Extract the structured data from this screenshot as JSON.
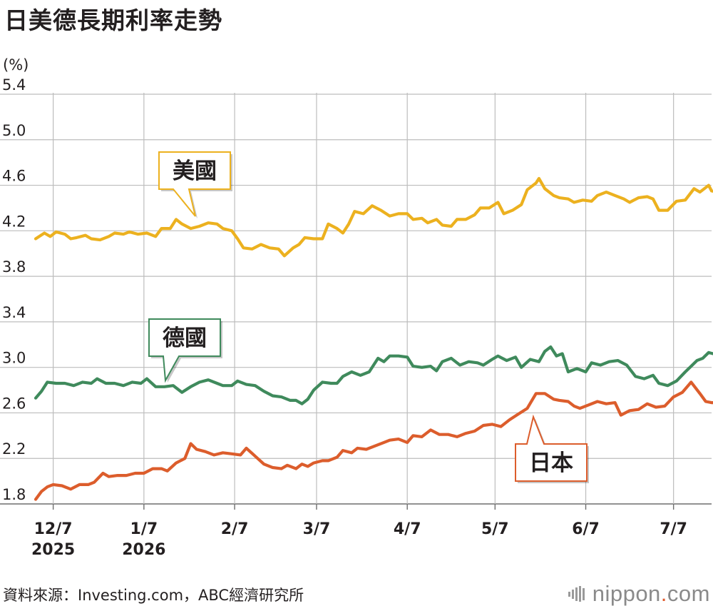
{
  "title": "日美德長期利率走勢",
  "source": "資料來源：Investing.com，ABC經濟研究所",
  "brand": {
    "prefix": "nippon",
    "dot": ".",
    "suffix": "com"
  },
  "colors": {
    "us": "#ecb11f",
    "de": "#3f8a5c",
    "jp": "#dc5d2c",
    "grid": "#bdbdbd",
    "text": "#231f20"
  },
  "chart_data": {
    "type": "line",
    "title": "日美德長期利率走勢",
    "ylabel": "(%)",
    "xlabel": "",
    "ylim": [
      1.8,
      5.4
    ],
    "yticks": [
      "5.4",
      "5.0",
      "4.6",
      "4.2",
      "3.8",
      "3.4",
      "3.0",
      "2.6",
      "2.2",
      "1.8"
    ],
    "x_range": [
      "2025-12-01",
      "2026-07-20"
    ],
    "xticks": [
      {
        "date": "2025-12-07",
        "label": "12/7",
        "sub": "2025"
      },
      {
        "date": "2026-01-07",
        "label": "1/7",
        "sub": "2026"
      },
      {
        "date": "2026-02-07",
        "label": "2/7",
        "sub": ""
      },
      {
        "date": "2026-03-07",
        "label": "3/7",
        "sub": ""
      },
      {
        "date": "2026-04-07",
        "label": "4/7",
        "sub": ""
      },
      {
        "date": "2026-05-07",
        "label": "5/7",
        "sub": ""
      },
      {
        "date": "2026-06-07",
        "label": "6/7",
        "sub": ""
      },
      {
        "date": "2026-07-07",
        "label": "7/7",
        "sub": ""
      }
    ],
    "grid": true,
    "series": [
      {
        "name": "美國",
        "color": "#ecb11f",
        "points": [
          [
            "2025-12-01",
            4.13
          ],
          [
            "2025-12-04",
            4.18
          ],
          [
            "2025-12-06",
            4.15
          ],
          [
            "2025-12-08",
            4.19
          ],
          [
            "2025-12-11",
            4.17
          ],
          [
            "2025-12-13",
            4.13
          ],
          [
            "2025-12-15",
            4.14
          ],
          [
            "2025-12-18",
            4.16
          ],
          [
            "2025-12-20",
            4.13
          ],
          [
            "2025-12-23",
            4.12
          ],
          [
            "2025-12-26",
            4.15
          ],
          [
            "2025-12-28",
            4.18
          ],
          [
            "2025-12-31",
            4.17
          ],
          [
            "2026-01-02",
            4.19
          ],
          [
            "2026-01-05",
            4.17
          ],
          [
            "2026-01-08",
            4.18
          ],
          [
            "2026-01-11",
            4.15
          ],
          [
            "2026-01-13",
            4.22
          ],
          [
            "2026-01-16",
            4.22
          ],
          [
            "2026-01-18",
            4.3
          ],
          [
            "2026-01-20",
            4.26
          ],
          [
            "2026-01-23",
            4.22
          ],
          [
            "2026-01-26",
            4.24
          ],
          [
            "2026-01-29",
            4.27
          ],
          [
            "2026-02-01",
            4.26
          ],
          [
            "2026-02-03",
            4.22
          ],
          [
            "2026-02-06",
            4.2
          ],
          [
            "2026-02-08",
            4.13
          ],
          [
            "2026-02-10",
            4.05
          ],
          [
            "2026-02-13",
            4.04
          ],
          [
            "2026-02-16",
            4.08
          ],
          [
            "2026-02-19",
            4.05
          ],
          [
            "2026-02-22",
            4.04
          ],
          [
            "2026-02-24",
            3.98
          ],
          [
            "2026-02-27",
            4.05
          ],
          [
            "2026-03-01",
            4.08
          ],
          [
            "2026-03-03",
            4.14
          ],
          [
            "2026-03-06",
            4.13
          ],
          [
            "2026-03-09",
            4.13
          ],
          [
            "2026-03-11",
            4.26
          ],
          [
            "2026-03-14",
            4.22
          ],
          [
            "2026-03-16",
            4.18
          ],
          [
            "2026-03-18",
            4.26
          ],
          [
            "2026-03-20",
            4.37
          ],
          [
            "2026-03-23",
            4.35
          ],
          [
            "2026-03-26",
            4.42
          ],
          [
            "2026-03-29",
            4.38
          ],
          [
            "2026-04-01",
            4.33
          ],
          [
            "2026-04-04",
            4.35
          ],
          [
            "2026-04-07",
            4.35
          ],
          [
            "2026-04-09",
            4.3
          ],
          [
            "2026-04-12",
            4.31
          ],
          [
            "2026-04-14",
            4.27
          ],
          [
            "2026-04-17",
            4.3
          ],
          [
            "2026-04-19",
            4.25
          ],
          [
            "2026-04-22",
            4.24
          ],
          [
            "2026-04-24",
            4.3
          ],
          [
            "2026-04-27",
            4.3
          ],
          [
            "2026-04-30",
            4.34
          ],
          [
            "2026-05-02",
            4.4
          ],
          [
            "2026-05-05",
            4.4
          ],
          [
            "2026-05-08",
            4.45
          ],
          [
            "2026-05-10",
            4.35
          ],
          [
            "2026-05-13",
            4.38
          ],
          [
            "2026-05-16",
            4.43
          ],
          [
            "2026-05-18",
            4.56
          ],
          [
            "2026-05-21",
            4.62
          ],
          [
            "2026-05-22",
            4.66
          ],
          [
            "2026-05-24",
            4.57
          ],
          [
            "2026-05-27",
            4.51
          ],
          [
            "2026-05-29",
            4.49
          ],
          [
            "2026-06-01",
            4.48
          ],
          [
            "2026-06-03",
            4.45
          ],
          [
            "2026-06-06",
            4.47
          ],
          [
            "2026-06-09",
            4.46
          ],
          [
            "2026-06-11",
            4.51
          ],
          [
            "2026-06-14",
            4.54
          ],
          [
            "2026-06-17",
            4.51
          ],
          [
            "2026-06-20",
            4.48
          ],
          [
            "2026-06-22",
            4.45
          ],
          [
            "2026-06-25",
            4.49
          ],
          [
            "2026-06-28",
            4.5
          ],
          [
            "2026-06-30",
            4.48
          ],
          [
            "2026-07-02",
            4.38
          ],
          [
            "2026-07-05",
            4.38
          ],
          [
            "2026-07-08",
            4.46
          ],
          [
            "2026-07-11",
            4.47
          ],
          [
            "2026-07-14",
            4.57
          ],
          [
            "2026-07-16",
            4.54
          ],
          [
            "2026-07-19",
            4.6
          ],
          [
            "2026-07-20",
            4.55
          ],
          [
            "2026-07-22",
            4.54
          ]
        ]
      },
      {
        "name": "德國",
        "color": "#3f8a5c",
        "points": [
          [
            "2025-12-01",
            2.73
          ],
          [
            "2025-12-03",
            2.79
          ],
          [
            "2025-12-05",
            2.87
          ],
          [
            "2025-12-08",
            2.86
          ],
          [
            "2025-12-11",
            2.86
          ],
          [
            "2025-12-14",
            2.84
          ],
          [
            "2025-12-17",
            2.87
          ],
          [
            "2025-12-20",
            2.86
          ],
          [
            "2025-12-22",
            2.9
          ],
          [
            "2025-12-25",
            2.86
          ],
          [
            "2025-12-28",
            2.86
          ],
          [
            "2025-12-31",
            2.84
          ],
          [
            "2026-01-03",
            2.87
          ],
          [
            "2026-01-06",
            2.86
          ],
          [
            "2026-01-08",
            2.9
          ],
          [
            "2026-01-11",
            2.83
          ],
          [
            "2026-01-14",
            2.83
          ],
          [
            "2026-01-17",
            2.84
          ],
          [
            "2026-01-20",
            2.78
          ],
          [
            "2026-01-23",
            2.83
          ],
          [
            "2026-01-26",
            2.87
          ],
          [
            "2026-01-29",
            2.89
          ],
          [
            "2026-02-01",
            2.86
          ],
          [
            "2026-02-03",
            2.84
          ],
          [
            "2026-02-06",
            2.84
          ],
          [
            "2026-02-08",
            2.88
          ],
          [
            "2026-02-11",
            2.85
          ],
          [
            "2026-02-14",
            2.84
          ],
          [
            "2026-02-17",
            2.79
          ],
          [
            "2026-02-20",
            2.75
          ],
          [
            "2026-02-23",
            2.74
          ],
          [
            "2026-02-26",
            2.71
          ],
          [
            "2026-02-28",
            2.71
          ],
          [
            "2026-03-02",
            2.68
          ],
          [
            "2026-03-04",
            2.72
          ],
          [
            "2026-03-06",
            2.8
          ],
          [
            "2026-03-09",
            2.87
          ],
          [
            "2026-03-12",
            2.86
          ],
          [
            "2026-03-14",
            2.86
          ],
          [
            "2026-03-16",
            2.92
          ],
          [
            "2026-03-19",
            2.96
          ],
          [
            "2026-03-22",
            2.93
          ],
          [
            "2026-03-25",
            2.96
          ],
          [
            "2026-03-28",
            3.08
          ],
          [
            "2026-03-30",
            3.05
          ],
          [
            "2026-04-01",
            3.1
          ],
          [
            "2026-04-04",
            3.1
          ],
          [
            "2026-04-07",
            3.09
          ],
          [
            "2026-04-09",
            3.01
          ],
          [
            "2026-04-12",
            3.0
          ],
          [
            "2026-04-15",
            3.01
          ],
          [
            "2026-04-17",
            2.97
          ],
          [
            "2026-04-19",
            3.05
          ],
          [
            "2026-04-22",
            3.08
          ],
          [
            "2026-04-25",
            3.02
          ],
          [
            "2026-04-28",
            3.05
          ],
          [
            "2026-05-01",
            3.04
          ],
          [
            "2026-05-03",
            3.02
          ],
          [
            "2026-05-06",
            3.07
          ],
          [
            "2026-05-08",
            3.1
          ],
          [
            "2026-05-11",
            3.06
          ],
          [
            "2026-05-14",
            3.09
          ],
          [
            "2026-05-16",
            3.0
          ],
          [
            "2026-05-19",
            3.07
          ],
          [
            "2026-05-22",
            3.05
          ],
          [
            "2026-05-24",
            3.14
          ],
          [
            "2026-05-26",
            3.18
          ],
          [
            "2026-05-28",
            3.1
          ],
          [
            "2026-05-30",
            3.12
          ],
          [
            "2026-06-01",
            2.96
          ],
          [
            "2026-06-04",
            2.99
          ],
          [
            "2026-06-07",
            2.96
          ],
          [
            "2026-06-09",
            3.04
          ],
          [
            "2026-06-12",
            3.02
          ],
          [
            "2026-06-15",
            3.05
          ],
          [
            "2026-06-18",
            3.06
          ],
          [
            "2026-06-21",
            3.02
          ],
          [
            "2026-06-24",
            2.92
          ],
          [
            "2026-06-27",
            2.9
          ],
          [
            "2026-06-30",
            2.93
          ],
          [
            "2026-07-02",
            2.86
          ],
          [
            "2026-07-05",
            2.84
          ],
          [
            "2026-07-08",
            2.88
          ],
          [
            "2026-07-11",
            2.96
          ],
          [
            "2026-07-13",
            3.01
          ],
          [
            "2026-07-15",
            3.06
          ],
          [
            "2026-07-17",
            3.08
          ],
          [
            "2026-07-19",
            3.13
          ],
          [
            "2026-07-22",
            3.11
          ]
        ]
      },
      {
        "name": "日本",
        "color": "#dc5d2c",
        "points": [
          [
            "2025-12-01",
            1.84
          ],
          [
            "2025-12-03",
            1.91
          ],
          [
            "2025-12-05",
            1.95
          ],
          [
            "2025-12-07",
            1.97
          ],
          [
            "2025-12-10",
            1.96
          ],
          [
            "2025-12-13",
            1.93
          ],
          [
            "2025-12-16",
            1.97
          ],
          [
            "2025-12-19",
            1.97
          ],
          [
            "2025-12-21",
            1.99
          ],
          [
            "2025-12-24",
            2.07
          ],
          [
            "2025-12-26",
            2.04
          ],
          [
            "2025-12-29",
            2.05
          ],
          [
            "2026-01-01",
            2.05
          ],
          [
            "2026-01-04",
            2.07
          ],
          [
            "2026-01-07",
            2.07
          ],
          [
            "2026-01-10",
            2.11
          ],
          [
            "2026-01-13",
            2.11
          ],
          [
            "2026-01-15",
            2.09
          ],
          [
            "2026-01-18",
            2.16
          ],
          [
            "2026-01-21",
            2.2
          ],
          [
            "2026-01-23",
            2.33
          ],
          [
            "2026-01-25",
            2.28
          ],
          [
            "2026-01-28",
            2.26
          ],
          [
            "2026-01-31",
            2.23
          ],
          [
            "2026-02-03",
            2.25
          ],
          [
            "2026-02-06",
            2.24
          ],
          [
            "2026-02-09",
            2.23
          ],
          [
            "2026-02-11",
            2.29
          ],
          [
            "2026-02-14",
            2.22
          ],
          [
            "2026-02-17",
            2.15
          ],
          [
            "2026-02-20",
            2.12
          ],
          [
            "2026-02-23",
            2.11
          ],
          [
            "2026-02-25",
            2.14
          ],
          [
            "2026-02-28",
            2.11
          ],
          [
            "2026-03-02",
            2.15
          ],
          [
            "2026-03-04",
            2.13
          ],
          [
            "2026-03-06",
            2.16
          ],
          [
            "2026-03-09",
            2.18
          ],
          [
            "2026-03-11",
            2.18
          ],
          [
            "2026-03-14",
            2.21
          ],
          [
            "2026-03-16",
            2.27
          ],
          [
            "2026-03-19",
            2.25
          ],
          [
            "2026-03-21",
            2.29
          ],
          [
            "2026-03-24",
            2.28
          ],
          [
            "2026-03-27",
            2.31
          ],
          [
            "2026-03-30",
            2.34
          ],
          [
            "2026-04-01",
            2.36
          ],
          [
            "2026-04-04",
            2.37
          ],
          [
            "2026-04-07",
            2.34
          ],
          [
            "2026-04-09",
            2.4
          ],
          [
            "2026-04-12",
            2.39
          ],
          [
            "2026-04-15",
            2.45
          ],
          [
            "2026-04-18",
            2.41
          ],
          [
            "2026-04-21",
            2.41
          ],
          [
            "2026-04-24",
            2.39
          ],
          [
            "2026-04-27",
            2.42
          ],
          [
            "2026-04-30",
            2.44
          ],
          [
            "2026-05-03",
            2.49
          ],
          [
            "2026-05-06",
            2.5
          ],
          [
            "2026-05-09",
            2.48
          ],
          [
            "2026-05-12",
            2.54
          ],
          [
            "2026-05-15",
            2.59
          ],
          [
            "2026-05-18",
            2.64
          ],
          [
            "2026-05-21",
            2.77
          ],
          [
            "2026-05-24",
            2.77
          ],
          [
            "2026-05-27",
            2.72
          ],
          [
            "2026-05-29",
            2.71
          ],
          [
            "2026-06-01",
            2.7
          ],
          [
            "2026-06-03",
            2.66
          ],
          [
            "2026-06-05",
            2.64
          ],
          [
            "2026-06-08",
            2.67
          ],
          [
            "2026-06-11",
            2.7
          ],
          [
            "2026-06-14",
            2.68
          ],
          [
            "2026-06-17",
            2.69
          ],
          [
            "2026-06-19",
            2.58
          ],
          [
            "2026-06-22",
            2.62
          ],
          [
            "2026-06-25",
            2.63
          ],
          [
            "2026-06-28",
            2.68
          ],
          [
            "2026-07-01",
            2.65
          ],
          [
            "2026-07-04",
            2.66
          ],
          [
            "2026-07-07",
            2.74
          ],
          [
            "2026-07-10",
            2.78
          ],
          [
            "2026-07-13",
            2.87
          ],
          [
            "2026-07-16",
            2.77
          ],
          [
            "2026-07-18",
            2.7
          ],
          [
            "2026-07-20",
            2.69
          ],
          [
            "2026-07-22",
            2.69
          ]
        ]
      }
    ]
  }
}
